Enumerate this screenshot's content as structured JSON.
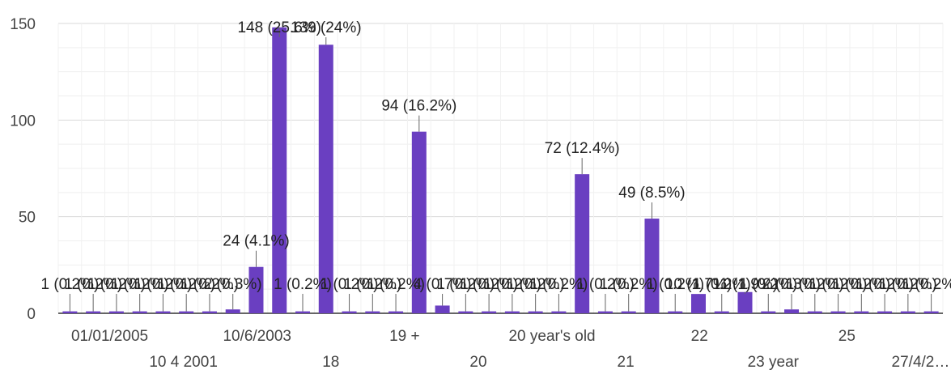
{
  "chart_data": {
    "type": "bar",
    "title": "",
    "xlabel": "",
    "ylabel": "",
    "ylim": [
      0,
      150
    ],
    "yticks": [
      0,
      50,
      100,
      150
    ],
    "grid": true,
    "legend": "none",
    "bar_color": "#6a3fc1",
    "leader_color": "#666666",
    "x_labels_row1": [
      "01/01/2005",
      "10/6/2003",
      "19 +",
      "20 year's old",
      "22",
      "25"
    ],
    "x_labels_row2": [
      "10 4 2001",
      "18",
      "20",
      "21",
      "23 year",
      "27/4/2…"
    ],
    "values": [
      1,
      1,
      1,
      1,
      1,
      1,
      1,
      2,
      24,
      148,
      1,
      139,
      1,
      1,
      1,
      94,
      4,
      1,
      1,
      1,
      1,
      1,
      72,
      1,
      1,
      49,
      1,
      10,
      1,
      11,
      1,
      2,
      1,
      1,
      1,
      1,
      1,
      1
    ],
    "data_labels": [
      "1 (0.2%)",
      "1 (0.2%)",
      "1 (0.2%)",
      "1 (0.2%)",
      "1 (0.2%)",
      "1 (0.2%)",
      "1 (0.2%)",
      "2 (0.3%)",
      "24 (4.1%)",
      "148 (25.6%)",
      "1 (0.2%)",
      "139 (24%)",
      "1 (0.2%)",
      "1 (0.2%)",
      "1 (0.2%)",
      "94 (16.2%)",
      "4 (0.7%)",
      "1 (0.2%)",
      "1 (0.2%)",
      "1 (0.2%)",
      "1 (0.2%)",
      "1 (0.2%)",
      "72 (12.4%)",
      "1 (0.2%)",
      "1 (0.2%)",
      "49 (8.5%)",
      "1 (0.2%)",
      "10 (1.7%)",
      "1 (0.2%)",
      "11 (1.9%)",
      "1 (0.2%)",
      "2 (0.3%)",
      "1 (0.2%)",
      "1 (0.2%)",
      "1 (0.2%)",
      "1 (0.2%)",
      "1 (0.2%)",
      "1 (0.2%)"
    ]
  }
}
